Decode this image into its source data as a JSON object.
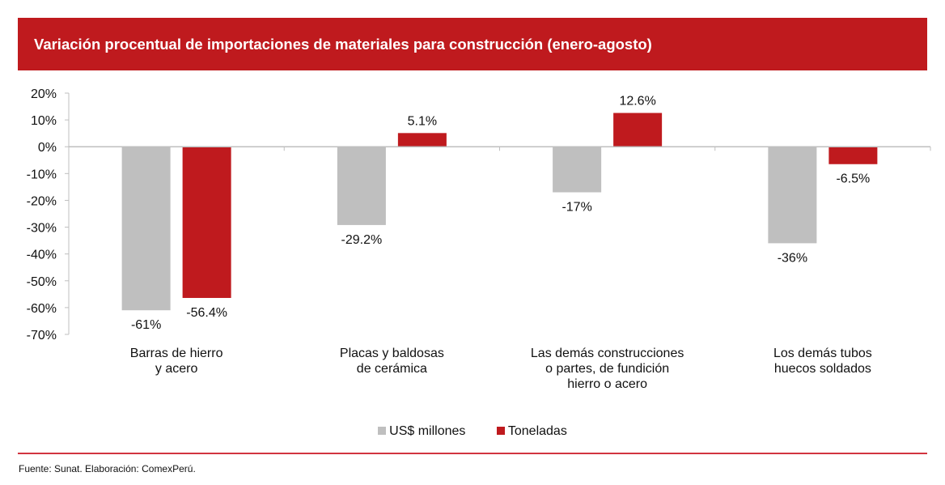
{
  "header": {
    "title": "Variación procentual de importaciones de materiales para construcción (enero-agosto)"
  },
  "colors": {
    "header_bg": "#BF1A1E",
    "series_usd": "#BFBFBF",
    "series_tons": "#BF1A1E",
    "rule": "#D2343F"
  },
  "chart_data": {
    "type": "bar",
    "title": "Variación procentual de importaciones de materiales para construcción (enero-agosto)",
    "xlabel": "",
    "ylabel": "",
    "ylim": [
      -70,
      20
    ],
    "yticks": [
      20,
      10,
      0,
      -10,
      -20,
      -30,
      -40,
      -50,
      -60,
      -70
    ],
    "ytick_labels": [
      "20%",
      "10%",
      "0%",
      "-10%",
      "-20%",
      "-30%",
      "-40%",
      "-50%",
      "-60%",
      "-70%"
    ],
    "grid": false,
    "legend_position": "bottom",
    "categories": [
      [
        "Barras de hierro",
        "y acero"
      ],
      [
        "Placas y baldosas",
        "de cerámica"
      ],
      [
        "Las demás construcciones",
        "o partes, de fundición",
        "hierro o acero"
      ],
      [
        "Los demás tubos",
        "huecos soldados"
      ]
    ],
    "series": [
      {
        "name": "US$ millones",
        "color": "#BFBFBF",
        "values": [
          -61,
          -29.2,
          -17,
          -36
        ],
        "labels": [
          "-61%",
          "-29.2%",
          "-17%",
          "-36%"
        ]
      },
      {
        "name": "Toneladas",
        "color": "#BF1A1E",
        "values": [
          -56.4,
          5.1,
          12.6,
          -6.5
        ],
        "labels": [
          "-56.4%",
          "5.1%",
          "12.6%",
          "-6.5%"
        ]
      }
    ]
  },
  "footer": {
    "source": "Fuente: Sunat. Elaboración: ComexPerú."
  }
}
